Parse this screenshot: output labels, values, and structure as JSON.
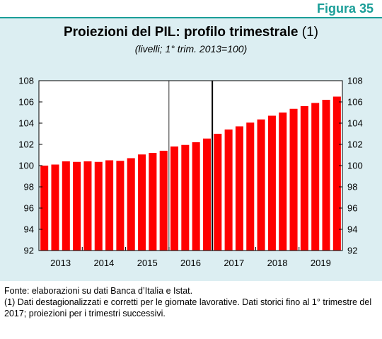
{
  "figure_label": "Figura 35",
  "title": "Proiezioni del PIL: profilo trimestrale",
  "title_note": "(1)",
  "subtitle": "(livelli; 1° trim. 2013=100)",
  "source_text": "Fonte: elaborazioni su dati Banca d’Italia e Istat.",
  "footnote_text": "(1) Dati destagionalizzati e corretti per le giornate lavorative. Dati storici fino al 1° trimestre del 2017; proiezioni per i trimestri successivi.",
  "colors": {
    "bar": "#ff0000",
    "accent": "#1a9e98",
    "panel_bg": "#dceef2"
  },
  "chart_data": {
    "type": "bar",
    "title": "Proiezioni del PIL: profilo trimestrale",
    "subtitle": "(livelli; 1° trim. 2013=100)",
    "year_labels": [
      "2013",
      "2014",
      "2015",
      "2016",
      "2017",
      "2018",
      "2019"
    ],
    "quarters_per_year": 4,
    "values": [
      100.0,
      100.1,
      100.4,
      100.35,
      100.4,
      100.35,
      100.5,
      100.45,
      100.7,
      101.05,
      101.2,
      101.4,
      101.8,
      101.95,
      102.2,
      102.55,
      103.0,
      103.4,
      103.7,
      104.05,
      104.35,
      104.7,
      105.0,
      105.35,
      105.6,
      105.9,
      106.2,
      106.5
    ],
    "ylim": [
      92,
      108
    ],
    "yticks": [
      92,
      94,
      96,
      98,
      100,
      102,
      104,
      106,
      108
    ],
    "y_axis_both_sides": true,
    "gridlines": false,
    "vertical_markers": [
      {
        "after_quarter_index": 12,
        "style": "thin"
      },
      {
        "after_quarter_index": 16,
        "style": "thick"
      }
    ]
  }
}
